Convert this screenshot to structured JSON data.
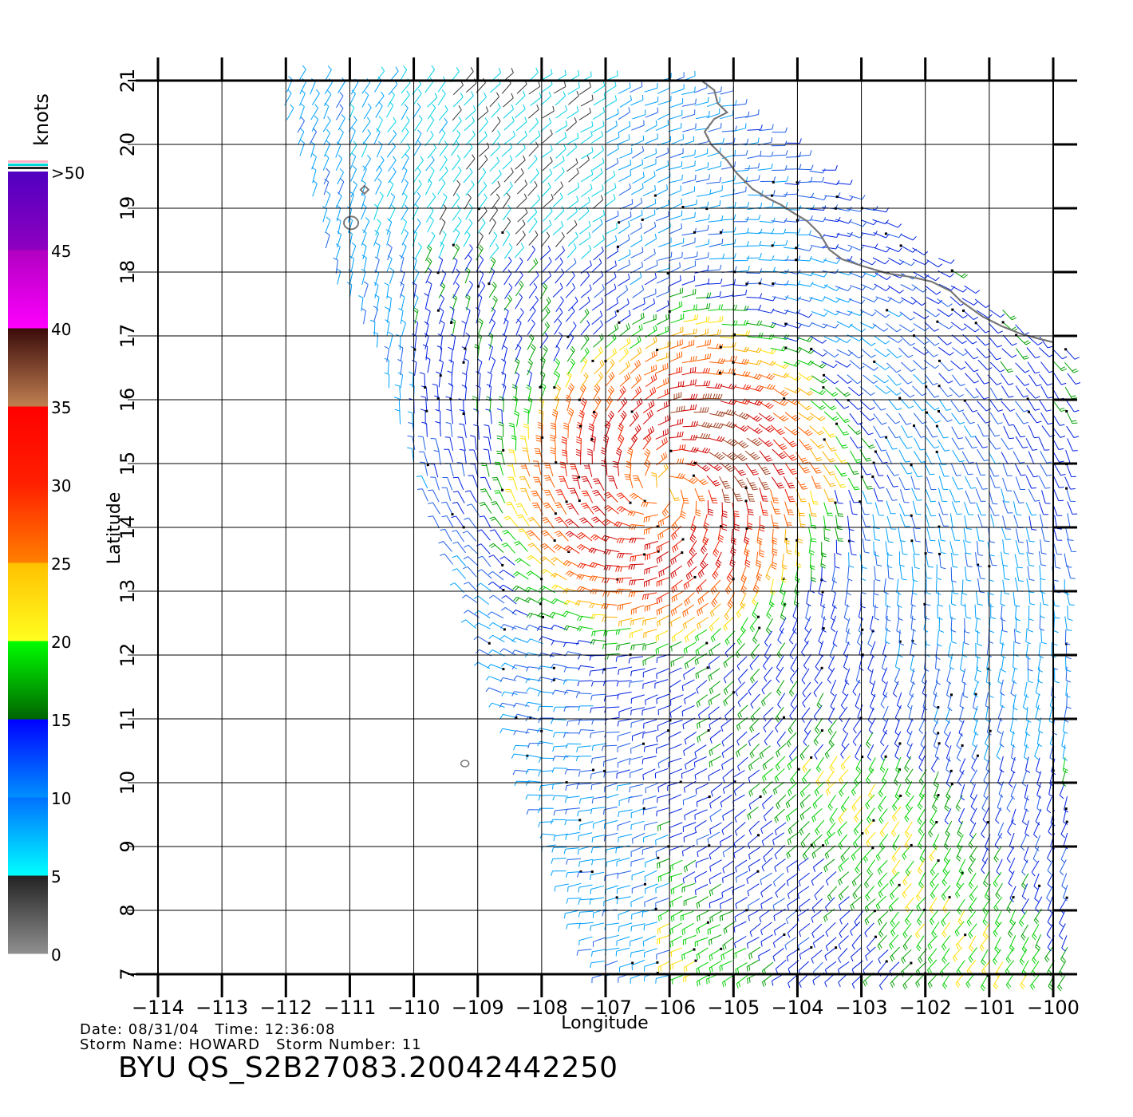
{
  "map": {
    "type": "wind-barb-map",
    "xlabel": "Longitude",
    "ylabel": "Latitude",
    "lon_ticks": [
      -114,
      -113,
      -112,
      -111,
      -110,
      -109,
      -108,
      -107,
      -106,
      -105,
      -104,
      -103,
      -102,
      -101,
      -100
    ],
    "lat_ticks": [
      7,
      8,
      9,
      10,
      11,
      12,
      13,
      14,
      15,
      16,
      17,
      18,
      19,
      20,
      21
    ],
    "lon_range": [
      -114,
      -100
    ],
    "lat_range": [
      7,
      21
    ],
    "storm_center": {
      "lon": -106.1,
      "lat": 14.6
    },
    "coastline_color": "#777777"
  },
  "colorbar": {
    "unit": "knots",
    "labels": [
      "0",
      "5",
      "10",
      "15",
      "20",
      "25",
      "30",
      "35",
      "40",
      "45",
      ">50"
    ],
    "bands": [
      {
        "from": 0,
        "to": 5,
        "top": "#222222",
        "bottom": "#909090"
      },
      {
        "from": 5,
        "to": 10,
        "top": "#0070ff",
        "bottom": "#00ffff"
      },
      {
        "from": 10,
        "to": 15,
        "top": "#0000ff",
        "bottom": "#0090ff"
      },
      {
        "from": 15,
        "to": 20,
        "top": "#00ff00",
        "bottom": "#006400"
      },
      {
        "from": 20,
        "to": 25,
        "top": "#ffc000",
        "bottom": "#ffff20"
      },
      {
        "from": 25,
        "to": 30,
        "top": "#ff2000",
        "bottom": "#ff8000"
      },
      {
        "from": 30,
        "to": 35,
        "top": "#ff0000",
        "bottom": "#ff2000"
      },
      {
        "from": 35,
        "to": 40,
        "top": "#3a0a0a",
        "bottom": "#c08050"
      },
      {
        "from": 40,
        "to": 45,
        "top": "#b000c0",
        "bottom": "#ff00ff"
      },
      {
        "from": 45,
        "to": 50,
        "top": "#5000c0",
        "bottom": "#9000c0"
      }
    ]
  },
  "info": {
    "date_line": "Date: 08/31/04   Time: 12:36:08",
    "storm_line": "Storm Name: HOWARD   Storm Number: 11",
    "product": "BYU QS_S2B27083.20042442250"
  }
}
